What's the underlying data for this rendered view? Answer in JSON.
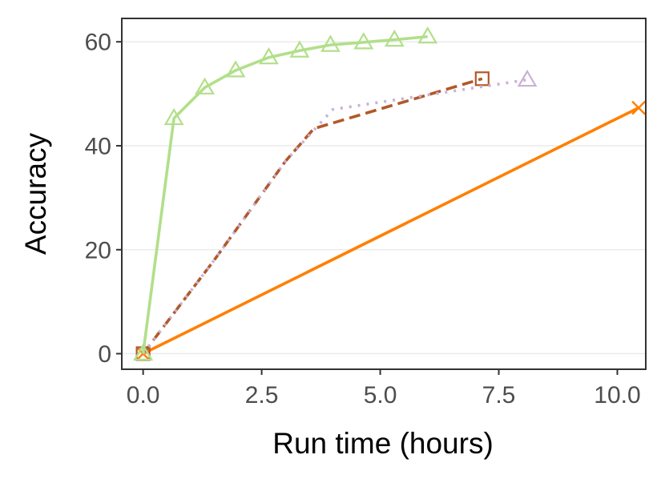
{
  "chart_data": {
    "type": "line",
    "title": "",
    "xlabel": "Run time (hours)",
    "ylabel": "Accuracy",
    "xlim": [
      -0.45,
      10.6
    ],
    "ylim": [
      -3,
      64.5
    ],
    "x_ticks": [
      0,
      2.5,
      5,
      7.5,
      10
    ],
    "x_tick_labels": [
      "0.0",
      "2.5",
      "5.0",
      "7.5",
      "10.0"
    ],
    "y_ticks": [
      0,
      20,
      40,
      60
    ],
    "y_tick_labels": [
      "0",
      "20",
      "40",
      "60"
    ],
    "grid": "horizontal",
    "legend": "none",
    "series": [
      {
        "color": "#ff7f00",
        "dash": "solid",
        "marker": "x",
        "marker_at": "endpoints",
        "x": [
          0,
          10.45
        ],
        "y": [
          0,
          47.3
        ]
      },
      {
        "color": "#b15928",
        "dash": "dashed",
        "marker": "square",
        "marker_at": "endpoints",
        "x": [
          0,
          1.5,
          3.0,
          3.6,
          7.15
        ],
        "y": [
          0,
          18.0,
          37.0,
          43.3,
          52.9
        ]
      },
      {
        "color": "#cab2d6",
        "dash": "dotted",
        "marker": "triangle",
        "marker_at": "endpoints",
        "x": [
          0,
          1.5,
          3.0,
          4.0,
          8.1
        ],
        "y": [
          0,
          18.0,
          37.0,
          47.0,
          52.7
        ]
      },
      {
        "color": "#b2df8a",
        "dash": "solid",
        "marker": "triangle",
        "marker_at": "all",
        "x": [
          0,
          0.65,
          1.3,
          1.95,
          2.65,
          3.3,
          3.95,
          4.65,
          5.3,
          6.0
        ],
        "y": [
          0,
          45.3,
          51.2,
          54.5,
          57.0,
          58.3,
          59.4,
          59.9,
          60.4,
          61.0
        ]
      }
    ]
  }
}
